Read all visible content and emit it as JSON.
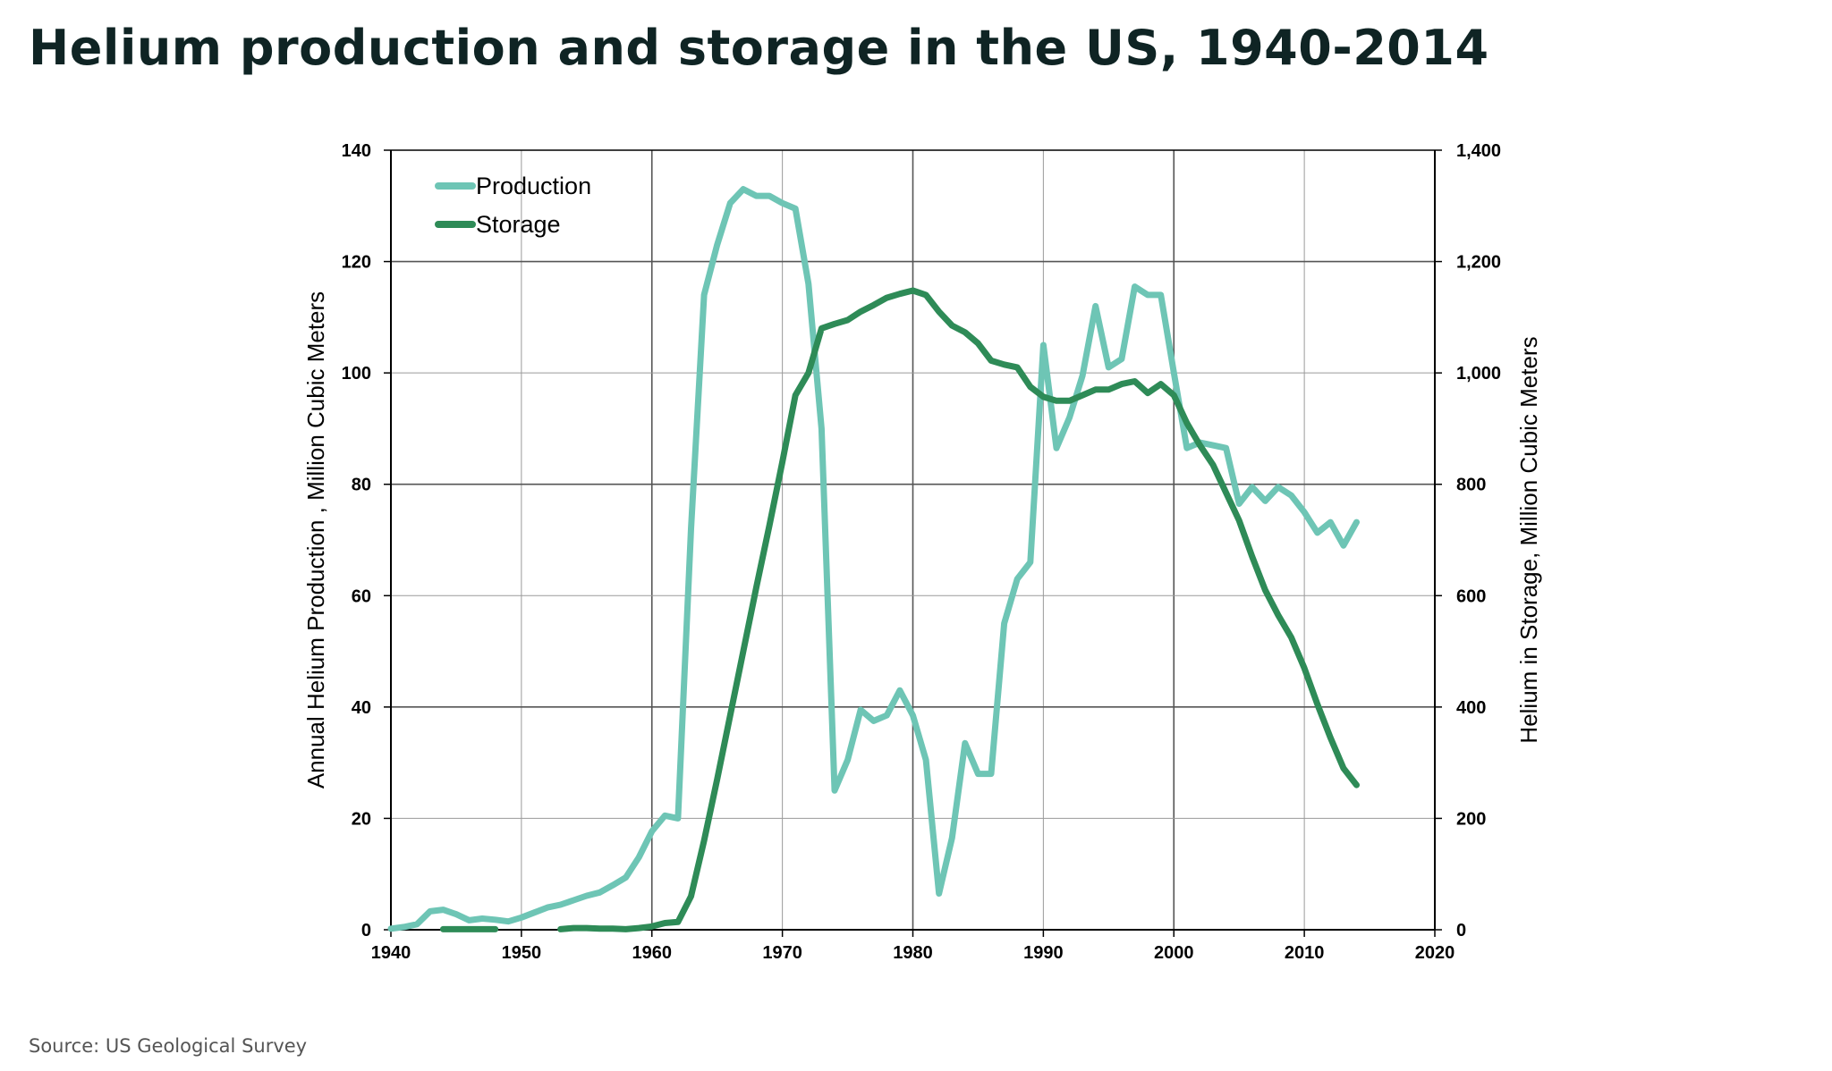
{
  "title": "Helium production and storage in the US, 1940-2014",
  "source": "Source: US Geological Survey",
  "colors": {
    "production": "#6ec5b5",
    "storage": "#2e8b57",
    "grid_major": "#555555",
    "grid_minor": "#9a9a9a"
  },
  "chart_data": {
    "type": "line",
    "title": "Helium production and storage in the US, 1940-2014",
    "xlabel": "",
    "ylabel": "Annual Helium Production , Million Cubic Meters",
    "y2label": "Helium in Storage, Million Cubic Meters",
    "xlim": [
      1940,
      2020
    ],
    "ylim": [
      0,
      140
    ],
    "y2lim": [
      0,
      1400
    ],
    "grid": true,
    "legend_position": "top-left",
    "x_ticks": [
      1940,
      1950,
      1960,
      1970,
      1980,
      1990,
      2000,
      2010,
      2020
    ],
    "x_tick_labels": [
      "1940",
      "1950",
      "1960",
      "1970",
      "1980",
      "1990",
      "2000",
      "2010",
      "2020"
    ],
    "y_ticks": [
      0,
      20,
      40,
      60,
      80,
      100,
      120,
      140
    ],
    "y_tick_labels": [
      "0",
      "20",
      "40",
      "60",
      "80",
      "100",
      "120",
      "140"
    ],
    "y2_ticks": [
      0,
      200,
      400,
      600,
      800,
      1000,
      1200,
      1400
    ],
    "y2_tick_labels": [
      "0",
      "200",
      "400",
      "600",
      "800",
      "1,000",
      "1,200",
      "1,400"
    ],
    "series": [
      {
        "name": "Production",
        "axis": "left",
        "color": "#6ec5b5",
        "points": [
          [
            1940,
            0.2
          ],
          [
            1941,
            0.5
          ],
          [
            1942,
            1
          ],
          [
            1943,
            3.3
          ],
          [
            1944,
            3.6
          ],
          [
            1945,
            2.8
          ],
          [
            1946,
            1.7
          ],
          [
            1947,
            2
          ],
          [
            1948,
            1.8
          ],
          [
            1949,
            1.5
          ],
          [
            1950,
            2.2
          ],
          [
            1951,
            3.1
          ],
          [
            1952,
            4
          ],
          [
            1953,
            4.5
          ],
          [
            1954,
            5.3
          ],
          [
            1955,
            6.1
          ],
          [
            1956,
            6.7
          ],
          [
            1957,
            8
          ],
          [
            1958,
            9.4
          ],
          [
            1959,
            13
          ],
          [
            1960,
            17.7
          ],
          [
            1961,
            20.5
          ],
          [
            1962,
            20
          ],
          [
            1963,
            72
          ],
          [
            1964,
            114
          ],
          [
            1965,
            123
          ],
          [
            1966,
            130.5
          ],
          [
            1967,
            133
          ],
          [
            1968,
            131.8
          ],
          [
            1969,
            131.8
          ],
          [
            1970,
            130.5
          ],
          [
            1971,
            129.5
          ],
          [
            1972,
            116
          ],
          [
            1973,
            90
          ],
          [
            1974,
            25
          ],
          [
            1975,
            30.5
          ],
          [
            1976,
            39.5
          ],
          [
            1977,
            37.5
          ],
          [
            1978,
            38.5
          ],
          [
            1979,
            43
          ],
          [
            1980,
            38.5
          ],
          [
            1981,
            30.5
          ],
          [
            1982,
            6.5
          ],
          [
            1983,
            16.5
          ],
          [
            1984,
            33.5
          ],
          [
            1985,
            28
          ],
          [
            1986,
            28
          ],
          [
            1987,
            55
          ],
          [
            1988,
            63
          ],
          [
            1989,
            66
          ],
          [
            1990,
            105
          ],
          [
            1991,
            86.5
          ],
          [
            1992,
            92
          ],
          [
            1993,
            99.5
          ],
          [
            1994,
            112
          ],
          [
            1995,
            101
          ],
          [
            1996,
            102.5
          ],
          [
            1997,
            115.5
          ],
          [
            1998,
            114
          ],
          [
            1999,
            114
          ],
          [
            2000,
            100
          ],
          [
            2001,
            86.5
          ],
          [
            2002,
            87.5
          ],
          [
            2003,
            87
          ],
          [
            2004,
            86.5
          ],
          [
            2005,
            76.5
          ],
          [
            2006,
            79.5
          ],
          [
            2007,
            77
          ],
          [
            2008,
            79.5
          ],
          [
            2009,
            78
          ],
          [
            2010,
            75
          ],
          [
            2011,
            71.3
          ],
          [
            2012,
            73.2
          ],
          [
            2013,
            69
          ],
          [
            2014,
            73.2
          ]
        ]
      },
      {
        "name": "Storage",
        "axis": "right",
        "color": "#2e8b57",
        "segments": [
          [
            [
              1944,
              1
            ],
            [
              1945,
              1
            ],
            [
              1946,
              1
            ],
            [
              1947,
              1
            ],
            [
              1948,
              1
            ]
          ],
          [
            [
              1953,
              1
            ],
            [
              1954,
              3
            ],
            [
              1955,
              3
            ],
            [
              1956,
              2
            ],
            [
              1957,
              2
            ],
            [
              1958,
              1
            ],
            [
              1959,
              3
            ],
            [
              1960,
              6
            ],
            [
              1961,
              12
            ],
            [
              1962,
              14
            ],
            [
              1963,
              60
            ],
            [
              1964,
              160
            ],
            [
              1965,
              270
            ],
            [
              1966,
              385
            ],
            [
              1967,
              500
            ],
            [
              1968,
              615
            ],
            [
              1969,
              725
            ],
            [
              1970,
              840
            ],
            [
              1971,
              960
            ],
            [
              1972,
              1000
            ],
            [
              1973,
              1080
            ],
            [
              1974,
              1088
            ],
            [
              1975,
              1095
            ],
            [
              1976,
              1110
            ],
            [
              1977,
              1122
            ],
            [
              1978,
              1135
            ],
            [
              1979,
              1142
            ],
            [
              1980,
              1148
            ],
            [
              1981,
              1140
            ],
            [
              1982,
              1110
            ],
            [
              1983,
              1085
            ],
            [
              1984,
              1073
            ],
            [
              1985,
              1053
            ],
            [
              1986,
              1022
            ],
            [
              1987,
              1015
            ],
            [
              1988,
              1010
            ],
            [
              1989,
              975
            ],
            [
              1990,
              957
            ],
            [
              1991,
              950
            ],
            [
              1992,
              950
            ],
            [
              1993,
              960
            ],
            [
              1994,
              970
            ],
            [
              1995,
              970
            ],
            [
              1996,
              980
            ],
            [
              1997,
              985
            ],
            [
              1998,
              964
            ],
            [
              1999,
              980
            ],
            [
              2000,
              960
            ],
            [
              2001,
              910
            ],
            [
              2002,
              870
            ],
            [
              2003,
              835
            ],
            [
              2004,
              785
            ],
            [
              2005,
              735
            ],
            [
              2006,
              670
            ],
            [
              2007,
              610
            ],
            [
              2008,
              565
            ],
            [
              2009,
              525
            ],
            [
              2010,
              470
            ],
            [
              2011,
              405
            ],
            [
              2012,
              345
            ],
            [
              2013,
              290
            ],
            [
              2014,
              260
            ]
          ]
        ]
      }
    ]
  }
}
